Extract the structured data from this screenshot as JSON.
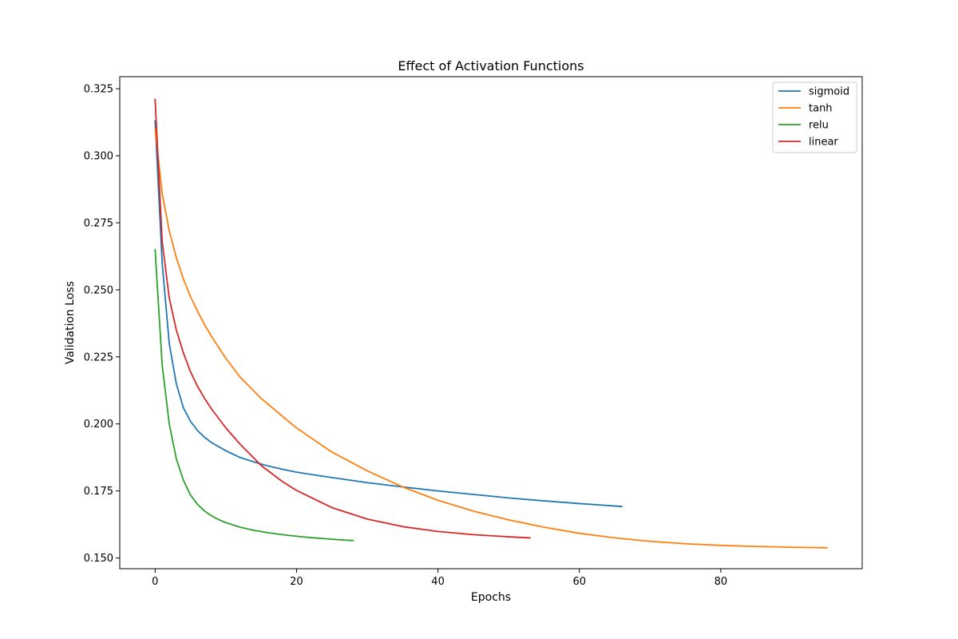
{
  "chart_data": {
    "type": "line",
    "title": "Effect of Activation Functions",
    "xlabel": "Epochs",
    "ylabel": "Validation Loss",
    "xlim": [
      -5,
      100
    ],
    "ylim": [
      0.146,
      0.3295
    ],
    "xticks": [
      0,
      20,
      40,
      60,
      80
    ],
    "yticks": [
      0.15,
      0.175,
      0.2,
      0.225,
      0.25,
      0.275,
      0.3,
      0.325
    ],
    "xtick_labels": [
      "0",
      "20",
      "40",
      "60",
      "80"
    ],
    "ytick_labels": [
      "0.150",
      "0.175",
      "0.200",
      "0.225",
      "0.250",
      "0.275",
      "0.300",
      "0.325"
    ],
    "grid": false,
    "legend_position": "top-right",
    "series": [
      {
        "name": "sigmoid",
        "color": "#1f77b4",
        "x": [
          0,
          1,
          2,
          3,
          4,
          5,
          6,
          7,
          8,
          9,
          10,
          12,
          14,
          16,
          18,
          20,
          25,
          30,
          35,
          40,
          45,
          50,
          55,
          60,
          66
        ],
        "y": [
          0.313,
          0.26,
          0.23,
          0.215,
          0.206,
          0.201,
          0.1975,
          0.195,
          0.193,
          0.1915,
          0.19,
          0.1875,
          0.1858,
          0.1843,
          0.1831,
          0.182,
          0.18,
          0.1781,
          0.1765,
          0.175,
          0.1737,
          0.1724,
          0.1713,
          0.1703,
          0.1692
        ]
      },
      {
        "name": "tanh",
        "color": "#ff7f0e",
        "x": [
          0,
          1,
          2,
          3,
          4,
          5,
          6,
          7,
          8,
          10,
          12,
          15,
          20,
          25,
          30,
          35,
          40,
          45,
          50,
          55,
          60,
          65,
          70,
          75,
          80,
          85,
          90,
          95
        ],
        "y": [
          0.31,
          0.286,
          0.272,
          0.262,
          0.254,
          0.2475,
          0.242,
          0.237,
          0.2325,
          0.2245,
          0.2175,
          0.2095,
          0.1985,
          0.1895,
          0.1825,
          0.1765,
          0.1715,
          0.1675,
          0.1642,
          0.1615,
          0.1592,
          0.1575,
          0.1562,
          0.1553,
          0.1547,
          0.1543,
          0.154,
          0.1538
        ]
      },
      {
        "name": "relu",
        "color": "#2ca02c",
        "x": [
          0,
          1,
          2,
          3,
          4,
          5,
          6,
          7,
          8,
          9,
          10,
          12,
          14,
          16,
          18,
          20,
          22,
          24,
          26,
          28
        ],
        "y": [
          0.265,
          0.222,
          0.2,
          0.187,
          0.179,
          0.1735,
          0.17,
          0.1675,
          0.1657,
          0.1643,
          0.1632,
          0.1615,
          0.1603,
          0.1594,
          0.1587,
          0.1581,
          0.1576,
          0.1572,
          0.1568,
          0.1565
        ]
      },
      {
        "name": "linear",
        "color": "#d62728",
        "x": [
          0,
          1,
          2,
          3,
          4,
          5,
          6,
          7,
          8,
          10,
          12,
          15,
          18,
          20,
          25,
          30,
          35,
          40,
          45,
          50,
          53
        ],
        "y": [
          0.321,
          0.268,
          0.247,
          0.235,
          0.2265,
          0.2195,
          0.214,
          0.2095,
          0.2055,
          0.1985,
          0.1925,
          0.1845,
          0.1785,
          0.1752,
          0.1688,
          0.1645,
          0.1617,
          0.1599,
          0.1587,
          0.1579,
          0.1575
        ]
      }
    ]
  }
}
